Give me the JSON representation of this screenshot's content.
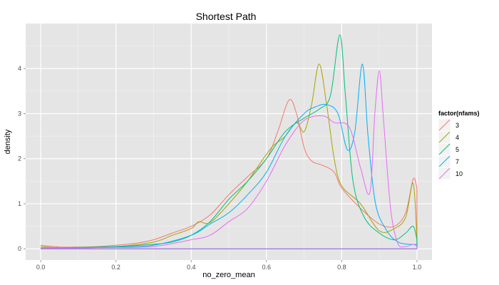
{
  "chart_data": {
    "type": "line",
    "title": "Shortest Path",
    "xlabel": "no_zero_mean",
    "ylabel": "density",
    "xlim": [
      -0.04,
      1.04
    ],
    "ylim": [
      -0.25,
      5.0
    ],
    "x_ticks": [
      0.0,
      0.2,
      0.4,
      0.6,
      0.8,
      1.0
    ],
    "x_tick_labels": [
      "0.0",
      "0.2",
      "0.4",
      "0.6",
      "0.8",
      "1.0"
    ],
    "y_ticks": [
      0,
      1,
      2,
      3,
      4
    ],
    "y_tick_labels": [
      "0",
      "1",
      "2",
      "3",
      "4"
    ],
    "grid": true,
    "legend": {
      "title": "factor(nfams)",
      "position": "right"
    },
    "series": [
      {
        "name": "3",
        "color": "#F8766D",
        "points": [
          [
            0.0,
            0.08
          ],
          [
            0.05,
            0.04
          ],
          [
            0.1,
            0.04
          ],
          [
            0.15,
            0.05
          ],
          [
            0.2,
            0.08
          ],
          [
            0.25,
            0.12
          ],
          [
            0.3,
            0.2
          ],
          [
            0.35,
            0.35
          ],
          [
            0.4,
            0.5
          ],
          [
            0.45,
            0.75
          ],
          [
            0.5,
            1.2
          ],
          [
            0.55,
            1.6
          ],
          [
            0.6,
            2.0
          ],
          [
            0.63,
            2.6
          ],
          [
            0.66,
            3.3
          ],
          [
            0.68,
            3.0
          ],
          [
            0.7,
            2.25
          ],
          [
            0.72,
            1.95
          ],
          [
            0.75,
            1.85
          ],
          [
            0.78,
            1.7
          ],
          [
            0.8,
            1.35
          ],
          [
            0.85,
            0.9
          ],
          [
            0.9,
            0.55
          ],
          [
            0.94,
            0.5
          ],
          [
            0.97,
            0.8
          ],
          [
            0.99,
            1.55
          ],
          [
            1.0,
            1.35
          ]
        ]
      },
      {
        "name": "4",
        "color": "#A3A500",
        "points": [
          [
            0.0,
            0.05
          ],
          [
            0.05,
            0.02
          ],
          [
            0.1,
            0.03
          ],
          [
            0.2,
            0.05
          ],
          [
            0.3,
            0.15
          ],
          [
            0.35,
            0.3
          ],
          [
            0.4,
            0.45
          ],
          [
            0.42,
            0.6
          ],
          [
            0.45,
            0.58
          ],
          [
            0.5,
            1.0
          ],
          [
            0.55,
            1.5
          ],
          [
            0.6,
            2.1
          ],
          [
            0.62,
            2.3
          ],
          [
            0.65,
            2.5
          ],
          [
            0.68,
            2.8
          ],
          [
            0.7,
            2.6
          ],
          [
            0.72,
            3.2
          ],
          [
            0.74,
            4.1
          ],
          [
            0.76,
            3.2
          ],
          [
            0.78,
            2.0
          ],
          [
            0.8,
            1.4
          ],
          [
            0.85,
            1.0
          ],
          [
            0.9,
            0.4
          ],
          [
            0.94,
            0.45
          ],
          [
            0.97,
            0.7
          ],
          [
            0.99,
            1.45
          ],
          [
            1.0,
            0.2
          ]
        ]
      },
      {
        "name": "5",
        "color": "#00BF7D",
        "points": [
          [
            0.0,
            0.02
          ],
          [
            0.1,
            0.03
          ],
          [
            0.2,
            0.05
          ],
          [
            0.3,
            0.1
          ],
          [
            0.35,
            0.15
          ],
          [
            0.4,
            0.3
          ],
          [
            0.45,
            0.6
          ],
          [
            0.5,
            1.1
          ],
          [
            0.55,
            1.5
          ],
          [
            0.6,
            2.0
          ],
          [
            0.65,
            2.6
          ],
          [
            0.7,
            2.9
          ],
          [
            0.74,
            3.1
          ],
          [
            0.77,
            3.4
          ],
          [
            0.795,
            4.75
          ],
          [
            0.81,
            3.4
          ],
          [
            0.83,
            1.5
          ],
          [
            0.86,
            0.7
          ],
          [
            0.9,
            0.35
          ],
          [
            0.94,
            0.2
          ],
          [
            0.97,
            0.35
          ],
          [
            0.99,
            0.5
          ],
          [
            1.0,
            0.2
          ]
        ]
      },
      {
        "name": "7",
        "color": "#00B0F6",
        "points": [
          [
            0.0,
            0.02
          ],
          [
            0.1,
            0.02
          ],
          [
            0.2,
            0.04
          ],
          [
            0.3,
            0.08
          ],
          [
            0.4,
            0.3
          ],
          [
            0.45,
            0.55
          ],
          [
            0.5,
            0.8
          ],
          [
            0.55,
            1.2
          ],
          [
            0.6,
            1.7
          ],
          [
            0.65,
            2.5
          ],
          [
            0.7,
            3.0
          ],
          [
            0.73,
            3.15
          ],
          [
            0.76,
            3.2
          ],
          [
            0.79,
            3.0
          ],
          [
            0.815,
            2.2
          ],
          [
            0.835,
            2.6
          ],
          [
            0.855,
            4.1
          ],
          [
            0.87,
            2.5
          ],
          [
            0.89,
            1.0
          ],
          [
            0.92,
            0.4
          ],
          [
            0.95,
            0.15
          ],
          [
            0.98,
            0.1
          ],
          [
            1.0,
            0.1
          ]
        ]
      },
      {
        "name": "10",
        "color": "#E76BF3",
        "points": [
          [
            0.0,
            0.02
          ],
          [
            0.1,
            0.02
          ],
          [
            0.2,
            0.03
          ],
          [
            0.3,
            0.05
          ],
          [
            0.4,
            0.2
          ],
          [
            0.45,
            0.3
          ],
          [
            0.5,
            0.6
          ],
          [
            0.55,
            0.9
          ],
          [
            0.6,
            1.5
          ],
          [
            0.65,
            2.3
          ],
          [
            0.7,
            2.85
          ],
          [
            0.75,
            2.95
          ],
          [
            0.78,
            2.8
          ],
          [
            0.82,
            2.7
          ],
          [
            0.85,
            1.8
          ],
          [
            0.875,
            1.25
          ],
          [
            0.888,
            3.0
          ],
          [
            0.9,
            3.95
          ],
          [
            0.91,
            3.0
          ],
          [
            0.93,
            0.9
          ],
          [
            0.95,
            0.1
          ],
          [
            0.97,
            0.05
          ],
          [
            0.99,
            0.1
          ],
          [
            1.0,
            0.05
          ]
        ]
      }
    ]
  }
}
